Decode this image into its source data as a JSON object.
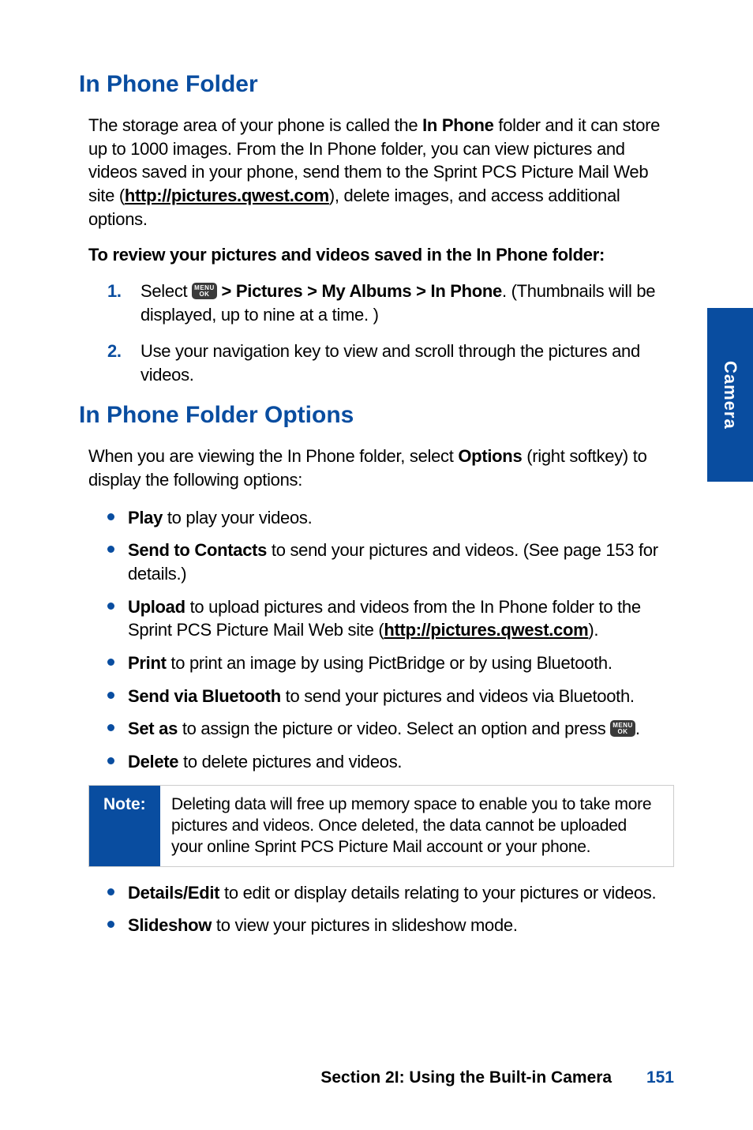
{
  "colors": {
    "accent": "#094da0",
    "text": "#000000",
    "noteBorder": "#cccccc",
    "iconBg": "#3a3a3a",
    "white": "#ffffff"
  },
  "sideTab": {
    "label": "Camera"
  },
  "section1": {
    "heading": "In Phone Folder",
    "intro_pre": "The storage area of your phone is called the ",
    "intro_bold1": "In Phone",
    "intro_mid": " folder and it can store up to 1000 images. From the In Phone folder, you can view pictures and videos saved in your phone, send them to the Sprint PCS Picture Mail Web site (",
    "intro_link": "http://pictures.qwest.com",
    "intro_post": "), delete images, and access additional options.",
    "sub": "To review your pictures and videos saved in the In Phone folder:",
    "steps": [
      {
        "num": "1.",
        "pre": "Select ",
        "bold": " > Pictures > My Albums > In Phone",
        "post": ". (Thumbnails will be displayed, up to nine at a time. )"
      },
      {
        "num": "2.",
        "text": "Use your navigation key to view and scroll through the pictures and videos."
      }
    ]
  },
  "section2": {
    "heading": "In Phone Folder Options",
    "intro_pre": "When you are viewing the In Phone folder, select ",
    "intro_bold": "Options",
    "intro_post": " (right softkey) to display the following options:",
    "bullets1": [
      {
        "bold": "Play",
        "text": " to play your videos."
      },
      {
        "bold": "Send to Contacts",
        "text": " to send your pictures and videos. (See page 153 for details.)"
      },
      {
        "bold": "Upload",
        "text_pre": " to upload pictures and videos from the In Phone folder to the Sprint PCS Picture Mail Web site (",
        "link": "http://pictures.qwest.com",
        "text_post": ")."
      },
      {
        "bold": "Print",
        "text": " to print an image by using PictBridge or by using Bluetooth."
      },
      {
        "bold": "Send via Bluetooth",
        "text": " to send your pictures and videos via Bluetooth."
      },
      {
        "bold": "Set as",
        "text": " to assign the picture or video. Select an option and press ",
        "icon_after": true,
        "tail": "."
      },
      {
        "bold": "Delete",
        "text": " to delete pictures and videos."
      }
    ],
    "note": {
      "label": "Note:",
      "text": "Deleting data will free up memory space to enable you to take more pictures and videos. Once deleted, the data cannot be uploaded your online Sprint PCS Picture Mail account or your phone."
    },
    "bullets2": [
      {
        "bold": "Details/Edit",
        "text": " to edit or display details relating to your pictures or videos."
      },
      {
        "bold": "Slideshow",
        "text": " to view your pictures in slideshow mode."
      }
    ]
  },
  "footer": {
    "section": "Section 2I: Using the Built-in Camera",
    "page": "151"
  },
  "menuIcon": {
    "top": "MENU",
    "bot": "OK"
  }
}
